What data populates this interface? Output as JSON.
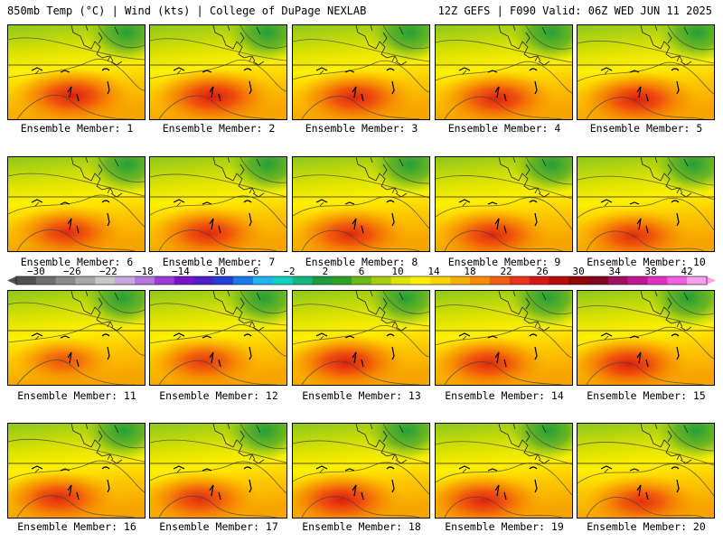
{
  "header": {
    "left": "850mb Temp (°C) | Wind (kts) | College of DuPage NEXLAB",
    "right": "12Z GEFS | F090 Valid: 06Z WED JUN 11 2025"
  },
  "members": [
    {
      "label": "Ensemble Member: 1",
      "intensity": 0.95
    },
    {
      "label": "Ensemble Member: 2",
      "intensity": 1.0
    },
    {
      "label": "Ensemble Member: 3",
      "intensity": 0.9
    },
    {
      "label": "Ensemble Member: 4",
      "intensity": 0.9
    },
    {
      "label": "Ensemble Member: 5",
      "intensity": 0.95
    },
    {
      "label": "Ensemble Member: 6",
      "intensity": 0.8
    },
    {
      "label": "Ensemble Member: 7",
      "intensity": 0.85
    },
    {
      "label": "Ensemble Member: 8",
      "intensity": 0.85
    },
    {
      "label": "Ensemble Member: 9",
      "intensity": 0.85
    },
    {
      "label": "Ensemble Member: 10",
      "intensity": 0.8
    },
    {
      "label": "Ensemble Member: 11",
      "intensity": 0.45
    },
    {
      "label": "Ensemble Member: 12",
      "intensity": 0.7
    },
    {
      "label": "Ensemble Member: 13",
      "intensity": 0.95
    },
    {
      "label": "Ensemble Member: 14",
      "intensity": 0.85
    },
    {
      "label": "Ensemble Member: 15",
      "intensity": 0.95
    },
    {
      "label": "Ensemble Member: 16",
      "intensity": 0.85
    },
    {
      "label": "Ensemble Member: 17",
      "intensity": 0.8
    },
    {
      "label": "Ensemble Member: 18",
      "intensity": 0.95
    },
    {
      "label": "Ensemble Member: 19",
      "intensity": 0.9
    },
    {
      "label": "Ensemble Member: 20",
      "intensity": 0.75
    }
  ],
  "colorbar": {
    "labels": [
      "−30",
      "−26",
      "−22",
      "−18",
      "−14",
      "−10",
      "−6",
      "−2",
      "2",
      "6",
      "10",
      "14",
      "18",
      "22",
      "26",
      "30",
      "34",
      "38",
      "42"
    ],
    "colors": [
      "#505050",
      "#6e7070",
      "#8a8c8c",
      "#a8a8a8",
      "#c7c7c7",
      "#c8a6e0",
      "#b478dc",
      "#9c3cd8",
      "#7a12c8",
      "#4e1ec8",
      "#2040d8",
      "#1a78e8",
      "#20b4f0",
      "#10d0c0",
      "#10b880",
      "#1c9c3c",
      "#30a028",
      "#6cb81c",
      "#a8cc10",
      "#dce400",
      "#fff000",
      "#fcd200",
      "#f8b000",
      "#f48c00",
      "#f06010",
      "#e83418",
      "#d81818",
      "#b80c0c",
      "#900808",
      "#800820",
      "#a01060",
      "#c01890",
      "#e030c0",
      "#f060e0",
      "#f8a0f0"
    ]
  }
}
